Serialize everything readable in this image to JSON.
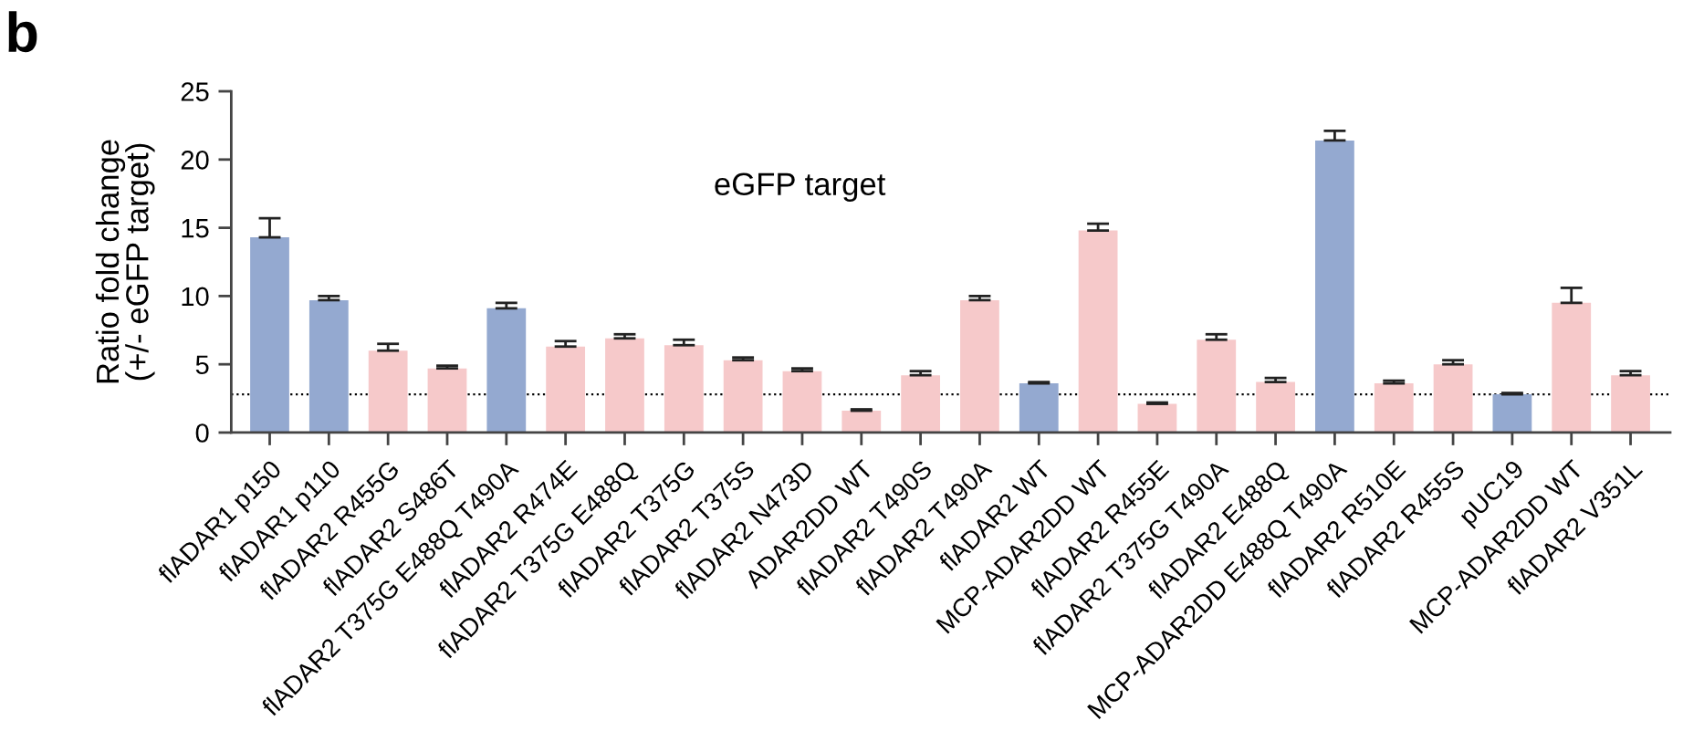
{
  "chart_data": {
    "type": "bar",
    "title": "b",
    "ylabel": "Ratio fold change\n(+/- eGFP target)",
    "categories": [
      "flADAR1 p150",
      "flADAR1 p110",
      "flADAR2 R455G",
      "flADAR2 S486T",
      "flADAR2 T375G E488Q T490A",
      "flADAR2 R474E",
      "flADAR2 T375G E488Q",
      "flADAR2 T375G",
      "flADAR2 T375S",
      "flADAR2 N473D",
      "ADAR2DD WT",
      "flADAR2 T490S",
      "flADAR2 T490A",
      "flADAR2 WT",
      "MCP-ADAR2DD WT",
      "flADAR2 R455E",
      "flADAR2 T375G T490A",
      "flADAR2 E488Q",
      "MCP-ADAR2DD E488Q T490A",
      "flADAR2 R510E",
      "flADAR2 R455S",
      "pUC19",
      "MCP-ADAR2DD WT",
      "flADAR2 V351L"
    ],
    "values": [
      14.3,
      9.7,
      6.0,
      4.7,
      9.1,
      6.3,
      6.9,
      6.4,
      5.3,
      4.5,
      1.6,
      4.2,
      9.7,
      3.6,
      14.8,
      2.1,
      6.8,
      3.7,
      21.4,
      3.6,
      5.0,
      2.8,
      9.5,
      4.2
    ],
    "errors": [
      [
        14.3,
        15.7
      ],
      [
        9.7,
        10.0
      ],
      [
        6.0,
        6.5
      ],
      [
        4.7,
        4.9
      ],
      [
        9.1,
        9.5
      ],
      [
        6.3,
        6.7
      ],
      [
        6.9,
        7.2
      ],
      [
        6.4,
        6.8
      ],
      [
        5.3,
        5.5
      ],
      [
        4.5,
        4.7
      ],
      [
        1.6,
        1.7
      ],
      [
        4.2,
        4.5
      ],
      [
        9.7,
        10.0
      ],
      [
        3.6,
        3.7
      ],
      [
        14.8,
        15.3
      ],
      [
        2.1,
        2.2
      ],
      [
        6.8,
        7.2
      ],
      [
        3.7,
        4.0
      ],
      [
        21.4,
        22.1
      ],
      [
        3.6,
        3.8
      ],
      [
        5.0,
        5.3
      ],
      [
        2.8,
        2.9
      ],
      [
        9.5,
        10.6
      ],
      [
        4.2,
        4.5
      ]
    ],
    "colors": [
      "#94a9d0",
      "#94a9d0",
      "#f6c9ca",
      "#f6c9ca",
      "#94a9d0",
      "#f6c9ca",
      "#f6c9ca",
      "#f6c9ca",
      "#f6c9ca",
      "#f6c9ca",
      "#f6c9ca",
      "#f6c9ca",
      "#f6c9ca",
      "#94a9d0",
      "#f6c9ca",
      "#f6c9ca",
      "#f6c9ca",
      "#f6c9ca",
      "#94a9d0",
      "#f6c9ca",
      "#f6c9ca",
      "#94a9d0",
      "#f6c9ca",
      "#f6c9ca"
    ],
    "ylim": [
      0,
      25
    ],
    "yticks": [
      0,
      5,
      10,
      15,
      20,
      25
    ],
    "ref_lines": [
      {
        "axis": "y",
        "value": 2.8,
        "line_style": "dotted",
        "color": "#000000"
      }
    ],
    "annotations": [
      "eGFP target"
    ]
  }
}
